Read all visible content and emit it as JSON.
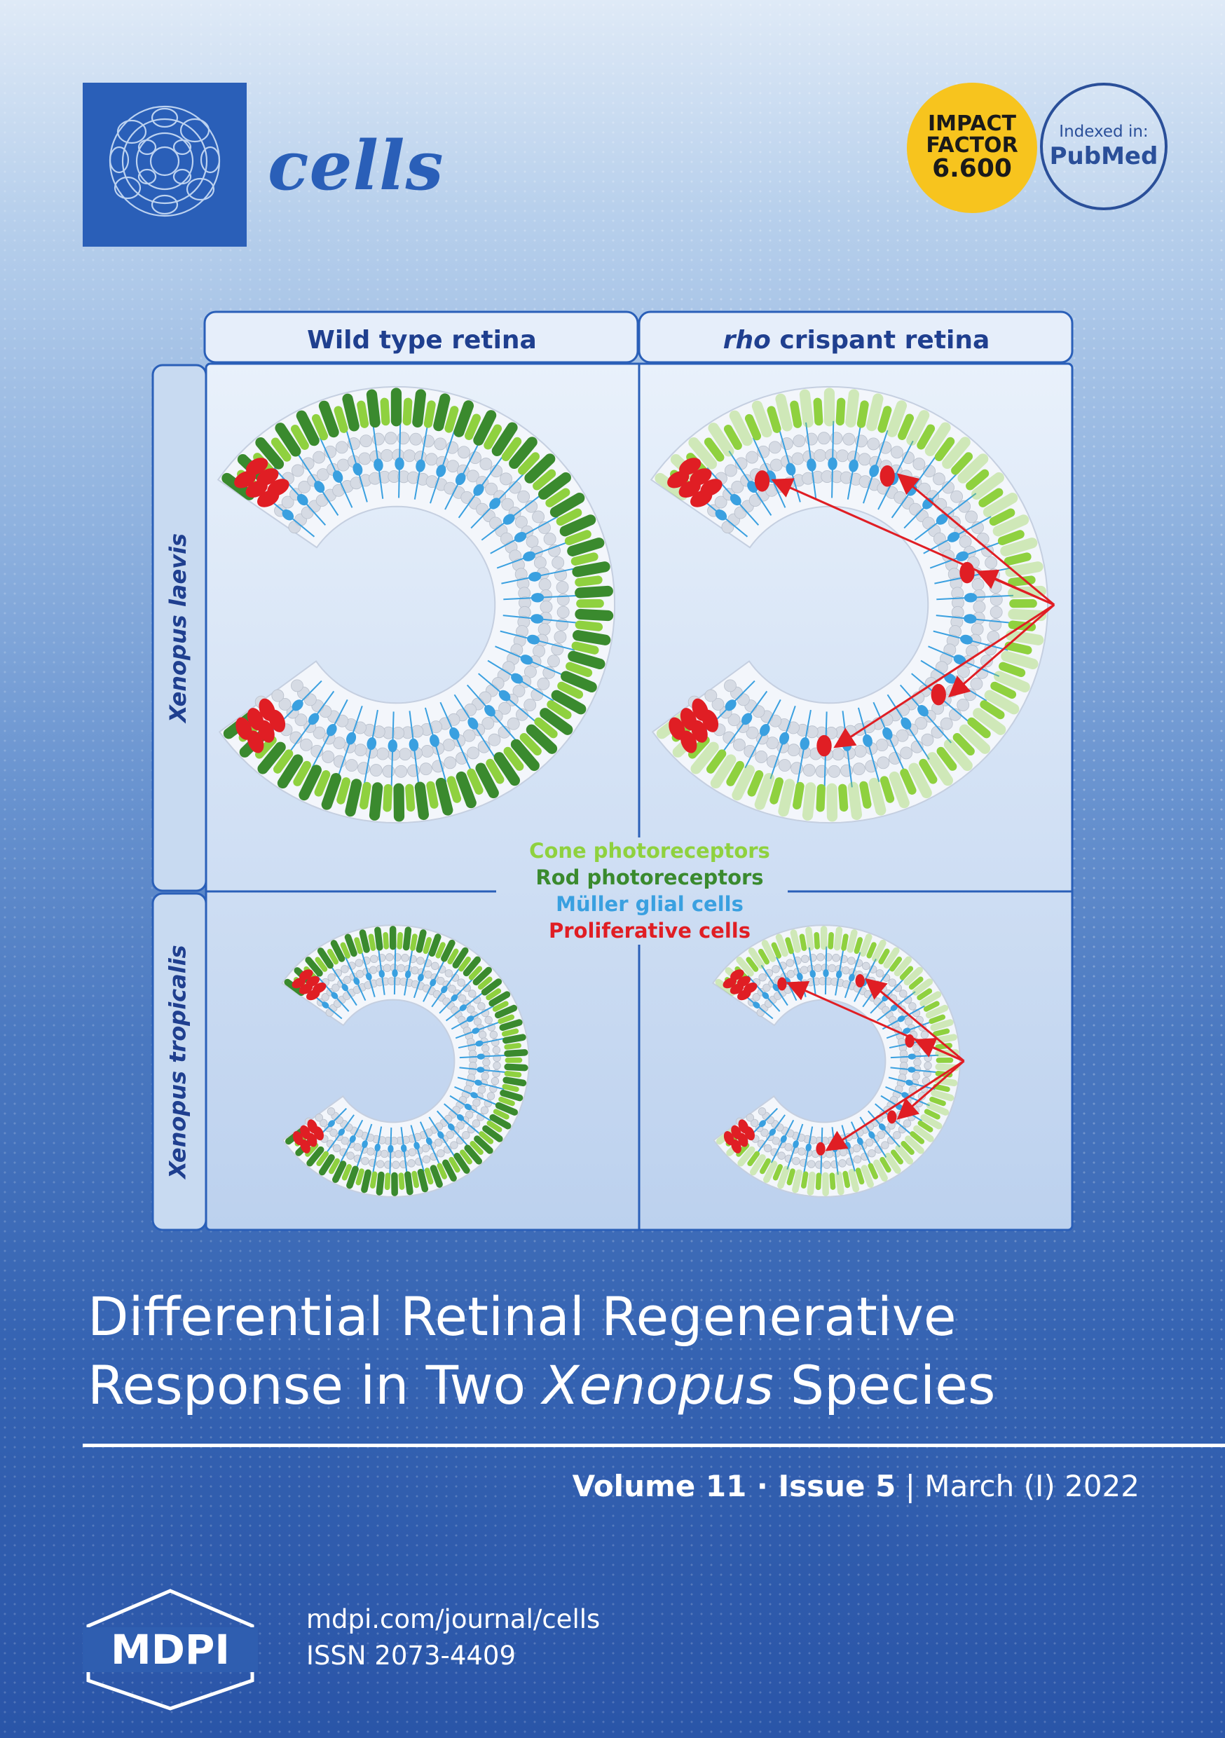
{
  "journal": {
    "name": "cells"
  },
  "badges": {
    "impact_factor": {
      "line1": "IMPACT",
      "line2": "FACTOR",
      "value": "6.600"
    },
    "indexed": {
      "line1": "Indexed in:",
      "line2": "PubMed"
    }
  },
  "figure": {
    "columns": [
      "Wild type retina",
      "crispant retina"
    ],
    "column2_prefix": "rho",
    "rows": [
      "Xenopus laevis",
      "Xenopus tropicalis"
    ],
    "legend": [
      {
        "label": "Cone photoreceptors",
        "color": "#8fd13f"
      },
      {
        "label": "Rod photoreceptors",
        "color": "#3a8a2e"
      },
      {
        "label": "Müller glial cells",
        "color": "#3aa0e0"
      },
      {
        "label": "Proliferative cells",
        "color": "#e01e24"
      }
    ]
  },
  "title": {
    "line1": "Differential Retinal Regenerative",
    "line2_pre": "Response in Two ",
    "line2_italic": "Xenopus",
    "line2_post": " Species"
  },
  "issue": {
    "volume": "Volume 11",
    "sep": " · ",
    "issue": "Issue 5",
    "divider": " | ",
    "date": "March (I) 2022"
  },
  "publisher": {
    "logo": "MDPI",
    "url": "mdpi.com/journal/cells",
    "issn": "ISSN 2073-4409"
  }
}
